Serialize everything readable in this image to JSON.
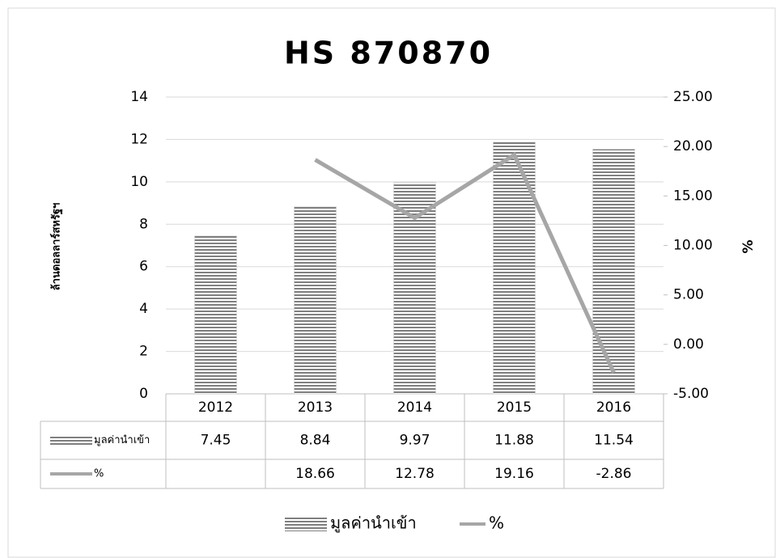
{
  "chart_data": {
    "type": "bar_line",
    "title": "HS 870870",
    "y_label": "ล้านดอลลาร์สหรัฐฯ",
    "y2_label": "%",
    "categories": [
      "2012",
      "2013",
      "2014",
      "2015",
      "2016"
    ],
    "series": [
      {
        "name": "มูลค่านำเข้า",
        "type": "bar",
        "color": "#7f7f7f",
        "values": [
          7.45,
          8.84,
          9.97,
          11.88,
          11.54
        ]
      },
      {
        "name": "%",
        "type": "line",
        "color": "#a6a6a6",
        "axis": "y2",
        "values": [
          null,
          18.66,
          12.78,
          19.16,
          -2.86
        ]
      }
    ],
    "ylim": [
      0,
      14
    ],
    "yticks": [
      0,
      2,
      4,
      6,
      8,
      10,
      12,
      14
    ],
    "y2lim": [
      -5,
      25
    ],
    "y2ticks": [
      {
        "value": -5,
        "label": "-5.00"
      },
      {
        "value": 0,
        "label": "0.00"
      },
      {
        "value": 5,
        "label": "5.00"
      },
      {
        "value": 10,
        "label": "10.00"
      },
      {
        "value": 15,
        "label": "15.00"
      },
      {
        "value": 20,
        "label": "20.00"
      },
      {
        "value": 25,
        "label": "25.00"
      }
    ],
    "grid": true,
    "legend": "bottom"
  }
}
